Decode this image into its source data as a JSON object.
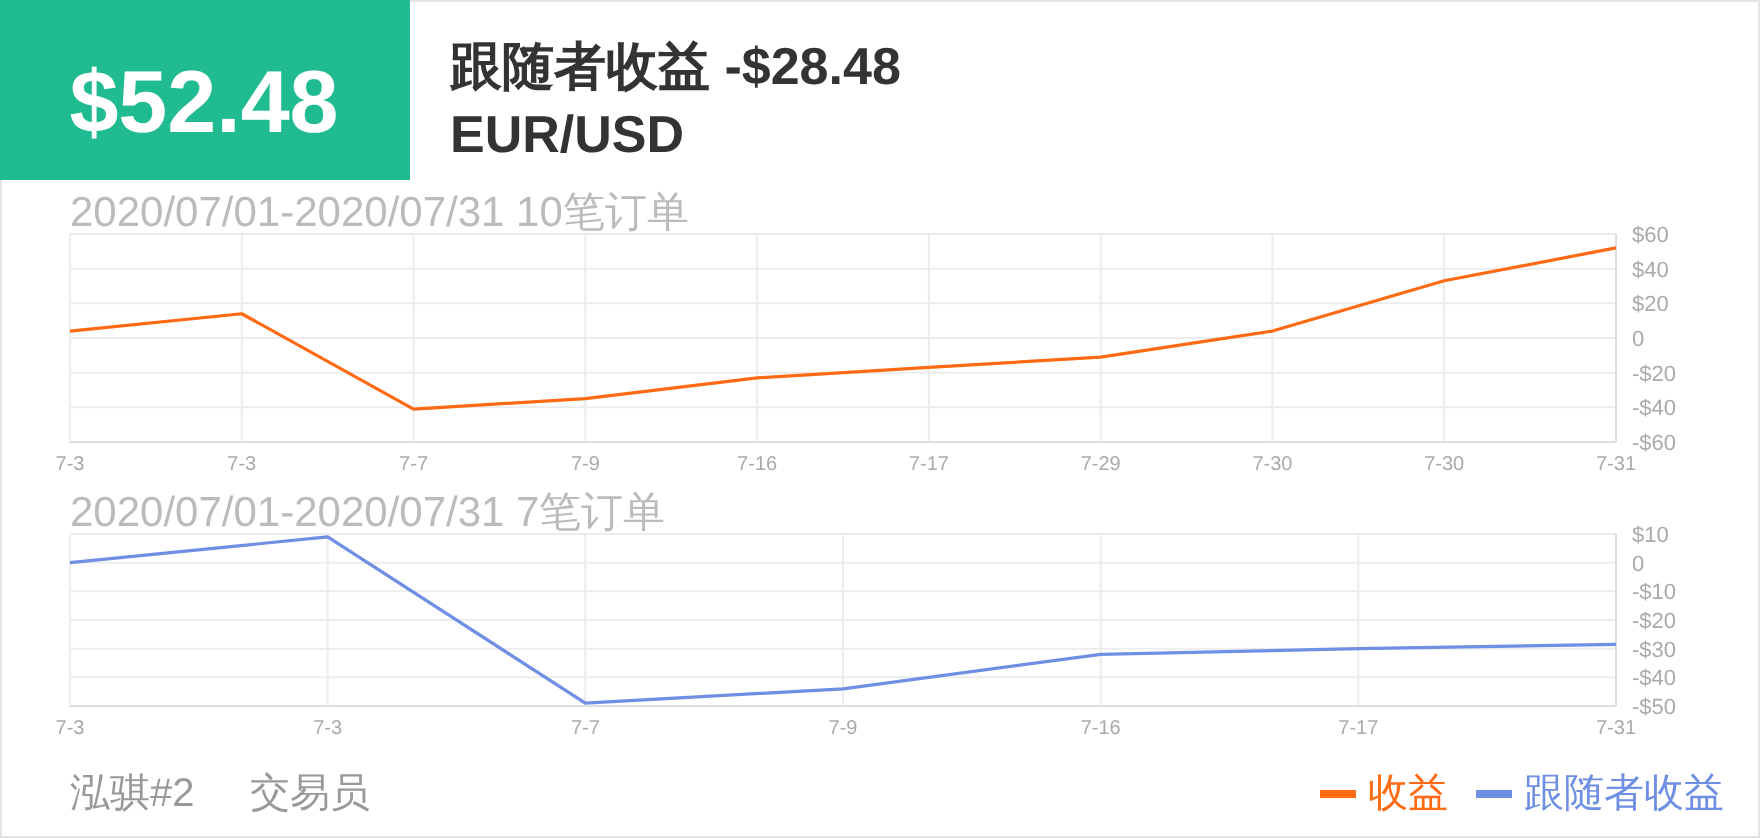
{
  "chart_data": [
    {
      "type": "other",
      "title": "$52.48",
      "subtitle": "跟随者收益 -$28.48",
      "color": "#20bb91",
      "annotations": [
        "EUR/USD",
        "泓骐#2",
        "交易员"
      ]
    },
    {
      "type": "line",
      "title": "2020/07/01-2020/07/31 10笔订单",
      "categories": [
        "7-3",
        "7-3",
        "7-7",
        "7-9",
        "7-16",
        "7-17",
        "7-29",
        "7-30",
        "7-30",
        "7-31"
      ],
      "series": [
        {
          "name": "收益",
          "color": "#ff6a13",
          "values": [
            4,
            14,
            -41,
            -35,
            -23,
            -17,
            -11,
            4,
            33,
            52
          ]
        }
      ],
      "ylim": [
        -60,
        60
      ],
      "yticks": [
        {
          "value": -60,
          "label": "-$60"
        },
        {
          "value": -40,
          "label": "-$40"
        },
        {
          "value": -20,
          "label": "-$20"
        },
        0,
        {
          "value": 20,
          "label": "$20"
        },
        {
          "value": 40,
          "label": "$40"
        },
        {
          "value": 60,
          "label": "$60"
        }
      ],
      "grid": true,
      "legend": "bottom right"
    },
    {
      "type": "line",
      "title": "2020/07/01-2020/07/31 7笔订单",
      "categories": [
        "7-3",
        "7-3",
        "7-7",
        "7-9",
        "7-16",
        "7-17",
        "7-31"
      ],
      "series": [
        {
          "name": "跟随者收益",
          "color": "#6e8fe3",
          "values": [
            0,
            9,
            -49,
            -44,
            -32,
            -30,
            -28.5
          ]
        }
      ],
      "ylim": [
        -50,
        10
      ],
      "yticks": [
        {
          "value": -50,
          "label": "-$50"
        },
        {
          "value": -40,
          "label": "-$40"
        },
        {
          "value": -30,
          "label": "-$30"
        },
        {
          "value": -20,
          "label": "-$20"
        },
        {
          "value": -10,
          "label": "-$10"
        },
        0,
        {
          "value": 10,
          "label": "$10"
        }
      ],
      "grid": true,
      "legend": "bottom right"
    }
  ]
}
